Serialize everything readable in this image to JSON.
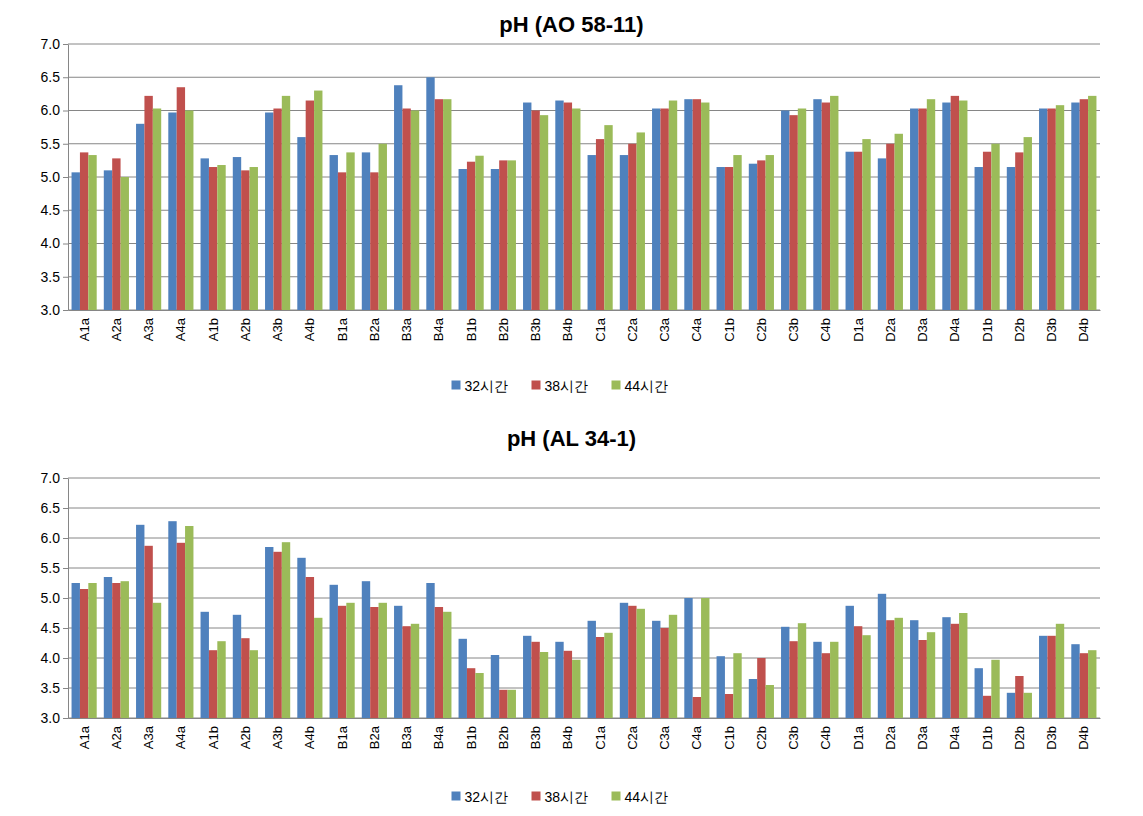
{
  "chart_data": [
    {
      "type": "bar",
      "title": "pH (AO 58-11)",
      "categories": [
        "A1a",
        "A2a",
        "A3a",
        "A4a",
        "A1b",
        "A2b",
        "A3b",
        "A4b",
        "B1a",
        "B2a",
        "B3a",
        "B4a",
        "B1b",
        "B2b",
        "B3b",
        "B4b",
        "C1a",
        "C2a",
        "C3a",
        "C4a",
        "C1b",
        "C2b",
        "C3b",
        "C4b",
        "D1a",
        "D2a",
        "D3a",
        "D4a",
        "D1b",
        "D2b",
        "D3b",
        "D4b"
      ],
      "series": [
        {
          "name": "32시간",
          "color": "#4f81bd",
          "values": [
            5.07,
            5.1,
            5.8,
            5.97,
            5.28,
            5.3,
            5.97,
            5.6,
            5.33,
            5.37,
            6.38,
            6.5,
            5.12,
            5.12,
            6.12,
            6.15,
            5.33,
            5.33,
            6.03,
            6.17,
            5.15,
            5.2,
            6.0,
            6.17,
            5.38,
            5.28,
            6.03,
            6.12,
            5.15,
            5.15,
            6.03,
            6.12
          ]
        },
        {
          "name": "38시간",
          "color": "#c0504d",
          "values": [
            5.37,
            5.28,
            6.22,
            6.35,
            5.15,
            5.1,
            6.03,
            6.15,
            5.07,
            5.07,
            6.03,
            6.17,
            5.23,
            5.25,
            6.0,
            6.12,
            5.57,
            5.5,
            6.03,
            6.17,
            5.15,
            5.25,
            5.93,
            6.12,
            5.38,
            5.5,
            6.03,
            6.22,
            5.38,
            5.37,
            6.03,
            6.17
          ]
        },
        {
          "name": "44시간",
          "color": "#9bbb59",
          "values": [
            5.33,
            5.0,
            6.03,
            6.0,
            5.18,
            5.15,
            6.22,
            6.3,
            5.37,
            5.5,
            6.0,
            6.17,
            5.32,
            5.25,
            5.93,
            6.03,
            5.78,
            5.67,
            6.15,
            6.12,
            5.33,
            5.33,
            6.03,
            6.22,
            5.57,
            5.65,
            6.17,
            6.15,
            5.5,
            5.6,
            6.08,
            6.22
          ]
        }
      ],
      "ylim": [
        3,
        7
      ],
      "yticks": [
        {
          "value": 3,
          "label": "3.0"
        },
        3.5,
        {
          "value": 4,
          "label": "4.0"
        },
        4.5,
        {
          "value": 5,
          "label": "5.0"
        },
        5.5,
        {
          "value": 6,
          "label": "6.0"
        },
        6.5,
        {
          "value": 7,
          "label": "7.0"
        }
      ],
      "grid": true,
      "legend": "bottom"
    },
    {
      "type": "bar",
      "title": "pH (AL 34-1)",
      "categories": [
        "A1a",
        "A2a",
        "A3a",
        "A4a",
        "A1b",
        "A2b",
        "A3b",
        "A4b",
        "B1a",
        "B2a",
        "B3a",
        "B4a",
        "B1b",
        "B2b",
        "B3b",
        "B4b",
        "C1a",
        "C2a",
        "C3a",
        "C4a",
        "C1b",
        "C2b",
        "C3b",
        "C4b",
        "D1a",
        "D2a",
        "D3a",
        "D4a",
        "D1b",
        "D2b",
        "D3b",
        "D4b"
      ],
      "series": [
        {
          "name": "32시간",
          "color": "#4f81bd",
          "values": [
            5.25,
            5.35,
            6.22,
            6.28,
            4.77,
            4.72,
            5.85,
            5.67,
            5.22,
            5.28,
            4.87,
            5.25,
            4.32,
            4.05,
            4.37,
            4.27,
            4.62,
            4.92,
            4.62,
            5.0,
            4.03,
            3.65,
            4.52,
            4.27,
            4.87,
            5.07,
            4.63,
            4.68,
            3.83,
            3.42,
            4.37,
            4.23
          ]
        },
        {
          "name": "38시간",
          "color": "#c0504d",
          "values": [
            5.15,
            5.25,
            5.87,
            5.92,
            4.13,
            4.33,
            5.77,
            5.35,
            4.87,
            4.85,
            4.53,
            4.85,
            3.83,
            3.47,
            4.27,
            4.12,
            4.35,
            4.87,
            4.5,
            3.35,
            3.4,
            4.0,
            4.28,
            4.08,
            4.53,
            4.63,
            4.3,
            4.57,
            3.37,
            3.7,
            4.37,
            4.08
          ]
        },
        {
          "name": "44시간",
          "color": "#9bbb59",
          "values": [
            5.25,
            5.28,
            4.92,
            6.2,
            4.28,
            4.13,
            5.93,
            4.67,
            4.92,
            4.92,
            4.57,
            4.77,
            3.75,
            3.47,
            4.1,
            3.97,
            4.42,
            4.82,
            4.72,
            5.0,
            4.08,
            3.55,
            4.58,
            4.27,
            4.38,
            4.67,
            4.43,
            4.75,
            3.97,
            3.42,
            4.57,
            4.13
          ]
        }
      ],
      "ylim": [
        3,
        7
      ],
      "yticks": [
        {
          "value": 3,
          "label": "3.0"
        },
        3.5,
        {
          "value": 4,
          "label": "4.0"
        },
        4.5,
        {
          "value": 5,
          "label": "5.0"
        },
        5.5,
        {
          "value": 6,
          "label": "6.0"
        },
        6.5,
        {
          "value": 7,
          "label": "7.0"
        }
      ],
      "grid": true,
      "legend": "bottom"
    }
  ]
}
